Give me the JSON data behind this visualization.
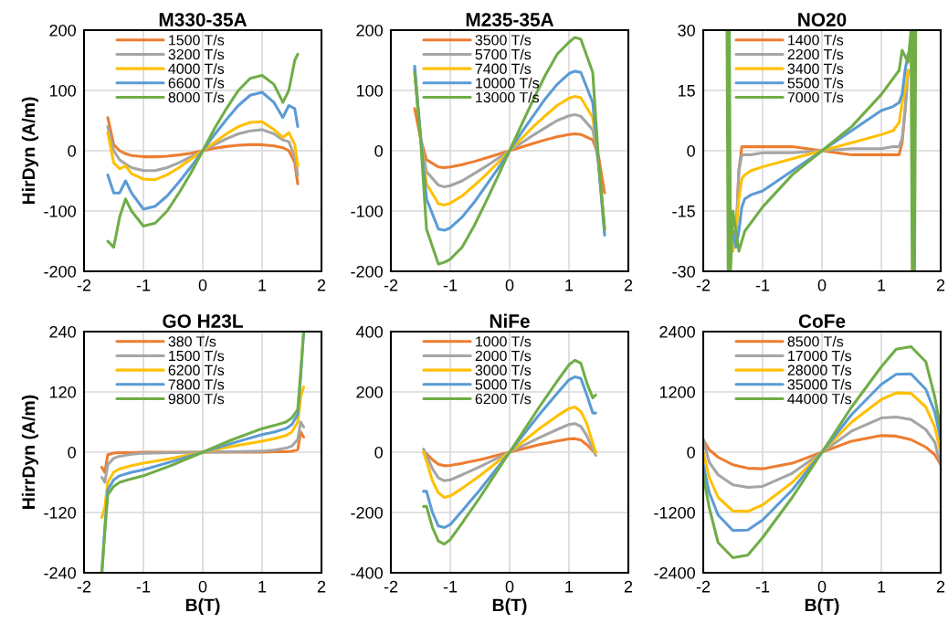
{
  "chart_data": [
    {
      "type": "line",
      "title": "M330-35A",
      "ylabel": "HirDyn (A/m)",
      "xlim": [
        -2,
        2
      ],
      "xticks": [
        -2,
        -1,
        0,
        1,
        2
      ],
      "ylim": [
        -200,
        200
      ],
      "yticks": [
        -200,
        -100,
        0,
        100,
        200
      ],
      "grid": true,
      "legend": "top left",
      "x": [
        -1.6,
        -1.5,
        -1.4,
        -1.3,
        -1.2,
        -1.0,
        -0.8,
        -0.6,
        -0.4,
        -0.2,
        0,
        0.2,
        0.4,
        0.6,
        0.8,
        1.0,
        1.2,
        1.35,
        1.45,
        1.55,
        1.6
      ],
      "series": [
        {
          "name": "1500 T/s",
          "color": "#ed7d31",
          "values": [
            55,
            10,
            0,
            -5,
            -8,
            -10,
            -10,
            -9,
            -7,
            -4,
            0,
            4,
            7,
            9,
            10,
            10,
            8,
            5,
            0,
            -20,
            -55
          ]
        },
        {
          "name": "3200 T/s",
          "color": "#a5a5a5",
          "values": [
            40,
            0,
            -15,
            -22,
            -28,
            -33,
            -33,
            -28,
            -20,
            -10,
            0,
            10,
            20,
            28,
            33,
            35,
            28,
            18,
            15,
            -10,
            -40
          ]
        },
        {
          "name": "4000 T/s",
          "color": "#ffc000",
          "values": [
            30,
            -20,
            -30,
            -25,
            -38,
            -47,
            -48,
            -40,
            -28,
            -14,
            0,
            14,
            28,
            40,
            47,
            48,
            35,
            22,
            30,
            10,
            -25
          ]
        },
        {
          "name": "6600 T/s",
          "color": "#5b9bd5",
          "values": [
            -40,
            -70,
            -70,
            -50,
            -70,
            -97,
            -92,
            -75,
            -52,
            -27,
            0,
            27,
            52,
            75,
            92,
            97,
            80,
            55,
            75,
            70,
            40
          ]
        },
        {
          "name": "8000 T/s",
          "color": "#70ad47",
          "values": [
            -150,
            -160,
            -110,
            -80,
            -100,
            -125,
            -120,
            -100,
            -70,
            -37,
            0,
            37,
            70,
            100,
            120,
            125,
            110,
            80,
            100,
            150,
            160
          ]
        }
      ]
    },
    {
      "type": "line",
      "title": "M235-35A",
      "xlim": [
        -2,
        2
      ],
      "xticks": [
        -2,
        -1,
        0,
        1,
        2
      ],
      "ylim": [
        -200,
        200
      ],
      "yticks": [
        -200,
        -100,
        0,
        100,
        200
      ],
      "grid": true,
      "legend": "top left",
      "x": [
        -1.6,
        -1.5,
        -1.4,
        -1.2,
        -1.1,
        -1.0,
        -0.8,
        -0.6,
        -0.4,
        -0.2,
        0,
        0.2,
        0.4,
        0.6,
        0.8,
        1.0,
        1.1,
        1.2,
        1.4,
        1.5,
        1.6
      ],
      "series": [
        {
          "name": "3500 T/s",
          "color": "#ed7d31",
          "values": [
            70,
            20,
            -15,
            -27,
            -28,
            -27,
            -23,
            -18,
            -12,
            -6,
            0,
            6,
            12,
            18,
            23,
            27,
            28,
            27,
            18,
            -10,
            -70
          ]
        },
        {
          "name": "5700 T/s",
          "color": "#a5a5a5",
          "values": [
            135,
            20,
            -35,
            -57,
            -60,
            -58,
            -50,
            -38,
            -26,
            -13,
            0,
            13,
            26,
            38,
            50,
            58,
            60,
            57,
            35,
            -20,
            -130
          ]
        },
        {
          "name": "7400 T/s",
          "color": "#ffc000",
          "values": [
            135,
            20,
            -55,
            -88,
            -90,
            -87,
            -75,
            -58,
            -40,
            -20,
            0,
            20,
            40,
            58,
            75,
            87,
            90,
            88,
            55,
            -20,
            -135
          ]
        },
        {
          "name": "10000 T/s",
          "color": "#5b9bd5",
          "values": [
            140,
            25,
            -80,
            -130,
            -132,
            -128,
            -110,
            -86,
            -58,
            -30,
            0,
            30,
            58,
            86,
            110,
            128,
            132,
            130,
            80,
            -25,
            -140
          ]
        },
        {
          "name": "13000 T/s",
          "color": "#70ad47",
          "values": [
            130,
            20,
            -130,
            -188,
            -185,
            -180,
            -160,
            -125,
            -85,
            -43,
            0,
            43,
            85,
            125,
            160,
            180,
            188,
            185,
            130,
            -20,
            -130
          ]
        }
      ]
    },
    {
      "type": "line",
      "title": "NO20",
      "xlim": [
        -2,
        2
      ],
      "xticks": [
        -2,
        -1,
        0,
        1,
        2
      ],
      "ylim": [
        -30,
        30
      ],
      "yticks": [
        -30,
        -15,
        0,
        15,
        30
      ],
      "grid": true,
      "legend": "top left",
      "x": [
        -1.5,
        -1.45,
        -1.4,
        -1.35,
        -1.3,
        -1.2,
        -1.0,
        -0.5,
        0,
        0.5,
        1.0,
        1.2,
        1.3,
        1.35,
        1.4,
        1.45
      ],
      "series": [
        {
          "name": "1400 T/s",
          "color": "#ed7d31",
          "values": [
            -20,
            -22,
            -5,
            1,
            1,
            1,
            1,
            1,
            0,
            -1,
            -1,
            -1,
            -1,
            2,
            10,
            20
          ]
        },
        {
          "name": "2200 T/s",
          "color": "#a5a5a5",
          "values": [
            -20,
            -22,
            -5,
            -1,
            -1,
            -1,
            -0.5,
            -0.5,
            0,
            0.5,
            0.5,
            1,
            1,
            3,
            10,
            20
          ]
        },
        {
          "name": "3400 T/s",
          "color": "#ffc000",
          "values": [
            -25,
            -20,
            -12,
            -7,
            -6,
            -5,
            -4,
            -2,
            0,
            2,
            4,
            5,
            7,
            12,
            15,
            20
          ]
        },
        {
          "name": "5500 T/s",
          "color": "#5b9bd5",
          "values": [
            -20,
            -24,
            -20,
            -14,
            -12,
            -11,
            -10,
            -5,
            0,
            5,
            10,
            11,
            12,
            14,
            20,
            24
          ]
        },
        {
          "name": "7000 T/s",
          "color": "#70ad47",
          "x": [
            -1.6,
            -1.58,
            -1.56,
            -1.54,
            -1.5,
            -1.45,
            -1.4,
            -1.3,
            -1.0,
            -0.5,
            0,
            0.5,
            1.0,
            1.3,
            1.35,
            1.45,
            1.5,
            1.52,
            1.54,
            1.56,
            1.58
          ],
          "values": [
            30,
            -30,
            30,
            -30,
            -15,
            -20,
            -25,
            -20,
            -14,
            -6,
            0,
            6,
            14,
            20,
            25,
            22,
            30,
            -30,
            30,
            -30,
            30
          ]
        }
      ]
    },
    {
      "type": "line",
      "title": "GO H23L",
      "xlabel": "B(T)",
      "ylabel": "HirrDyn (A/m)",
      "xlim": [
        -2,
        2
      ],
      "xticks": [
        -2,
        -1,
        0,
        1,
        2
      ],
      "ylim": [
        -240,
        240
      ],
      "yticks": [
        -240,
        -120,
        0,
        120,
        240
      ],
      "grid": true,
      "legend": "top left",
      "x": [
        -1.7,
        -1.65,
        -1.6,
        -1.5,
        -1.4,
        -1.2,
        -1.0,
        -0.5,
        0,
        0.5,
        1.0,
        1.2,
        1.4,
        1.5,
        1.6,
        1.65,
        1.7
      ],
      "series": [
        {
          "name": "380 T/s",
          "color": "#ed7d31",
          "values": [
            -30,
            -40,
            -5,
            -2,
            -1,
            -1,
            0,
            0,
            0,
            0,
            0,
            1,
            1,
            2,
            5,
            40,
            30
          ]
        },
        {
          "name": "1500 T/s",
          "color": "#a5a5a5",
          "values": [
            -50,
            -60,
            -25,
            -12,
            -8,
            -4,
            -2,
            -1,
            0,
            1,
            2,
            4,
            8,
            12,
            25,
            60,
            50
          ]
        },
        {
          "name": "6200 T/s",
          "color": "#ffc000",
          "values": [
            -130,
            -110,
            -60,
            -40,
            -33,
            -27,
            -22,
            -12,
            0,
            12,
            22,
            27,
            33,
            40,
            60,
            110,
            130
          ]
        },
        {
          "name": "7800 T/s",
          "color": "#5b9bd5",
          "values": [
            -240,
            -150,
            -75,
            -55,
            -47,
            -40,
            -35,
            -18,
            0,
            18,
            35,
            40,
            47,
            55,
            75,
            150,
            240
          ]
        },
        {
          "name": "9800 T/s",
          "color": "#70ad47",
          "values": [
            -240,
            -160,
            -85,
            -68,
            -60,
            -53,
            -47,
            -25,
            0,
            25,
            47,
            53,
            60,
            68,
            85,
            160,
            240
          ]
        }
      ]
    },
    {
      "type": "line",
      "title": "NiFe",
      "xlabel": "B(T)",
      "xlim": [
        -2,
        2
      ],
      "xticks": [
        -2,
        -1,
        0,
        1,
        2
      ],
      "ylim": [
        -400,
        400
      ],
      "yticks": [
        -400,
        -200,
        0,
        200,
        400
      ],
      "grid": true,
      "legend": "top left",
      "x": [
        -1.45,
        -1.4,
        -1.3,
        -1.2,
        -1.1,
        -1.0,
        -0.8,
        -0.5,
        0,
        0.5,
        0.8,
        1.0,
        1.1,
        1.2,
        1.3,
        1.4,
        1.45
      ],
      "series": [
        {
          "name": "1000 T/s",
          "color": "#ed7d31",
          "values": [
            0,
            -5,
            -25,
            -40,
            -45,
            -44,
            -37,
            -25,
            0,
            25,
            37,
            44,
            45,
            40,
            25,
            5,
            0
          ]
        },
        {
          "name": "2000 T/s",
          "color": "#a5a5a5",
          "values": [
            10,
            -10,
            -55,
            -85,
            -95,
            -92,
            -75,
            -48,
            0,
            48,
            75,
            92,
            95,
            85,
            55,
            10,
            -10
          ]
        },
        {
          "name": "3000 T/s",
          "color": "#ffc000",
          "values": [
            0,
            -30,
            -95,
            -135,
            -150,
            -145,
            -120,
            -78,
            0,
            78,
            120,
            145,
            150,
            135,
            95,
            30,
            0
          ]
        },
        {
          "name": "5000 T/s",
          "color": "#5b9bd5",
          "values": [
            -130,
            -130,
            -200,
            -245,
            -250,
            -240,
            -195,
            -125,
            0,
            125,
            195,
            240,
            250,
            245,
            190,
            130,
            130
          ]
        },
        {
          "name": "6200 T/s",
          "color": "#70ad47",
          "values": [
            -180,
            -180,
            -250,
            -295,
            -305,
            -290,
            -235,
            -150,
            0,
            150,
            235,
            290,
            305,
            295,
            230,
            180,
            190
          ]
        }
      ]
    },
    {
      "type": "line",
      "title": "CoFe",
      "xlabel": "B(T)",
      "xlim": [
        -2,
        2
      ],
      "xticks": [
        -2,
        -1,
        0,
        1,
        2
      ],
      "ylim": [
        -2400,
        2400
      ],
      "yticks": [
        -2400,
        -1200,
        0,
        1200,
        2400
      ],
      "grid": true,
      "legend": "top left",
      "x": [
        -2,
        -1.9,
        -1.75,
        -1.5,
        -1.25,
        -1.0,
        -0.5,
        0,
        0.5,
        1.0,
        1.25,
        1.5,
        1.75,
        1.9,
        2
      ],
      "series": [
        {
          "name": "8500 T/s",
          "color": "#ed7d31",
          "values": [
            250,
            50,
            -100,
            -250,
            -320,
            -330,
            -220,
            0,
            220,
            330,
            320,
            250,
            100,
            -50,
            -250
          ]
        },
        {
          "name": "17000 T/s",
          "color": "#a5a5a5",
          "values": [
            250,
            -200,
            -450,
            -650,
            -700,
            -680,
            -420,
            0,
            420,
            680,
            700,
            650,
            450,
            200,
            -250
          ]
        },
        {
          "name": "28000 T/s",
          "color": "#ffc000",
          "values": [
            0,
            -500,
            -900,
            -1170,
            -1180,
            -1050,
            -600,
            0,
            600,
            1050,
            1180,
            1170,
            900,
            500,
            0
          ]
        },
        {
          "name": "35000 T/s",
          "color": "#5b9bd5",
          "values": [
            -250,
            -800,
            -1250,
            -1560,
            -1550,
            -1350,
            -750,
            0,
            750,
            1350,
            1550,
            1560,
            1250,
            800,
            250
          ]
        },
        {
          "name": "44000 T/s",
          "color": "#70ad47",
          "values": [
            -450,
            -1100,
            -1800,
            -2100,
            -2050,
            -1700,
            -900,
            0,
            900,
            1700,
            2050,
            2100,
            1800,
            1100,
            450
          ]
        }
      ]
    }
  ]
}
